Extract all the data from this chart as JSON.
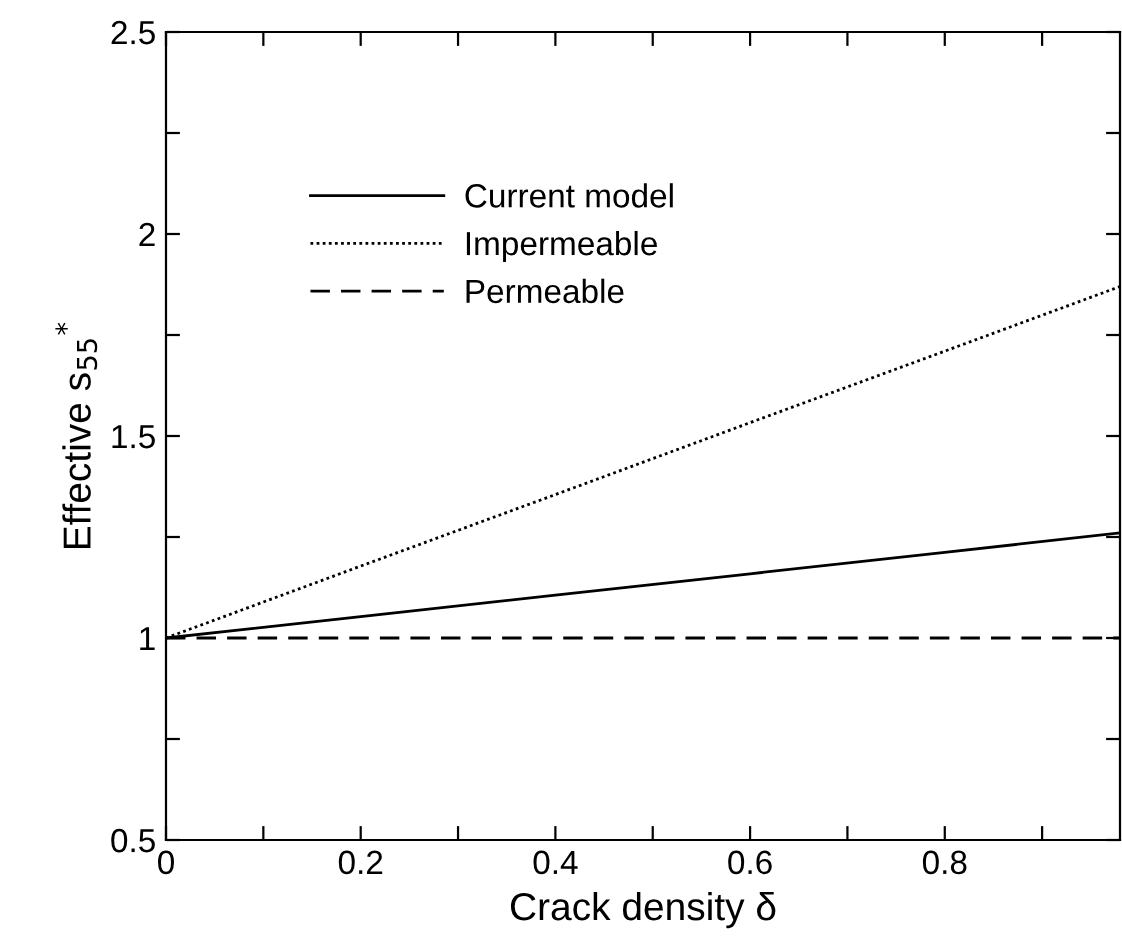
{
  "chart_data": {
    "type": "line",
    "xlabel": "Crack density δ",
    "ylabel": "Effective s$_{55}$$^{*}$",
    "x": [
      0,
      0.2,
      0.4,
      0.6,
      0.8,
      0.98
    ],
    "series": [
      {
        "name": "Current model",
        "color": "#000000",
        "line_style": "solid",
        "values": [
          1,
          1.053,
          1.106,
          1.159,
          1.212,
          1.26
        ]
      },
      {
        "name": "Impermeable",
        "color": "#000000",
        "line_style": "dotted",
        "values": [
          1,
          1.178,
          1.355,
          1.533,
          1.71,
          1.87
        ]
      },
      {
        "name": "Permeable",
        "color": "#000000",
        "line_style": "dashed",
        "values": [
          1,
          1,
          1,
          1,
          1,
          1
        ]
      }
    ],
    "xlim": [
      0,
      0.98
    ],
    "ylim": [
      0.5,
      2.5
    ],
    "xticks": [
      0,
      {
        "value": 0.1,
        "label": null
      },
      0.2,
      {
        "value": 0.3,
        "label": null
      },
      0.4,
      {
        "value": 0.5,
        "label": null
      },
      0.6,
      {
        "value": 0.7,
        "label": null
      },
      0.8,
      {
        "value": 0.9,
        "label": null
      }
    ],
    "yticks": [
      0.5,
      {
        "value": 0.75,
        "label": null
      },
      1,
      {
        "value": 1.25,
        "label": null
      },
      1.5,
      {
        "value": 1.75,
        "label": null
      },
      2,
      {
        "value": 2.25,
        "label": null
      },
      2.5
    ],
    "legend": "top left",
    "grid": false,
    "marker": "none"
  }
}
